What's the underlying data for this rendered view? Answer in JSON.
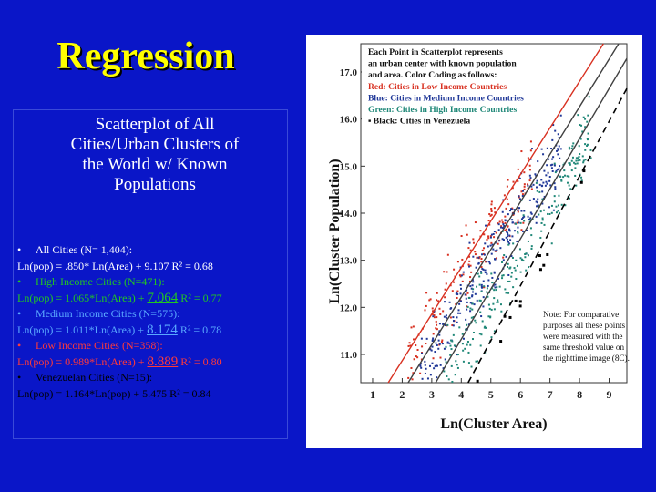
{
  "slide": {
    "title": "Regression",
    "subtitle_lines": [
      "Scatterplot of All",
      "Cities/Urban Clusters of",
      "the World w/ Known",
      "Populations"
    ],
    "stats": [
      {
        "bullet": "•",
        "label": "All Cities (N= 1,404):",
        "formula_prefix": "Ln(pop) = .850* Ln(Area) + 9.107",
        "big_value": "",
        "formula_suffix": " R² = 0.68",
        "color": "white"
      },
      {
        "bullet": "•",
        "label": "High Income Cities (N=471):",
        "formula_prefix": "Ln(pop) = 1.065*Ln(Area) + ",
        "big_value": "7.064",
        "formula_suffix": " R² = 0.77",
        "color": "green"
      },
      {
        "bullet": "•",
        "label": "Medium Income Cities (N=575):",
        "formula_prefix": "Ln(pop) = 1.011*Ln(Area) + ",
        "big_value": "8.174",
        "formula_suffix": " R² = 0.78",
        "color": "blue"
      },
      {
        "bullet": "•",
        "label": "Low Income Cities (N=358):",
        "formula_prefix": "Ln(pop) = 0.989*Ln(Area) + ",
        "big_value": "8.889",
        "formula_suffix": "  R² = 0.80",
        "color": "red"
      },
      {
        "bullet": "•",
        "label": "Venezuelan Cities (N=15):",
        "formula_prefix": "Ln(pop) = 1.164*Ln(pop) + 5.475   R² = 0.84",
        "big_value": "",
        "formula_suffix": "",
        "color": "vblk"
      }
    ]
  },
  "chart_data": {
    "type": "scatter",
    "xlabel": "Ln(Cluster Area)",
    "ylabel": "Ln(Cluster Population)",
    "xlim": [
      0.6,
      9.6
    ],
    "ylim": [
      10.4,
      17.6
    ],
    "x_ticks": [
      "1",
      "2",
      "3",
      "4",
      "5",
      "6",
      "7",
      "8",
      "9"
    ],
    "y_ticks": [
      "11.0",
      "12.0",
      "13.0",
      "14.0",
      "15.0",
      "16.0",
      "17.0"
    ],
    "legend": {
      "position": "top-right",
      "lines": [
        "Each Point in Scatterplot represents",
        "an urban center with known population",
        "and area. Color Coding as follows:",
        "Red: Cities in Low Income Countries",
        "Blue: Cities in Medium Income Countries",
        "Green: Cities in High Income Countries",
        "▪ Black: Cities in Venezuela"
      ]
    },
    "note": {
      "position": "bottom-right",
      "lines": [
        "Note: For comparative",
        "purposes all these points",
        "were measured with the",
        "same threshold value on",
        "the nighttime image (8C)."
      ]
    },
    "series": [
      {
        "name": "Low Income",
        "color": "#d83020",
        "slope": 0.989,
        "intercept": 8.889,
        "r2": 0.8,
        "n": 358,
        "x_range": [
          2.2,
          6.4
        ]
      },
      {
        "name": "Medium Income",
        "color": "#203898",
        "slope": 1.011,
        "intercept": 8.174,
        "r2": 0.78,
        "n": 575,
        "x_range": [
          2.6,
          7.4
        ]
      },
      {
        "name": "High Income",
        "color": "#208878",
        "slope": 1.065,
        "intercept": 7.064,
        "r2": 0.77,
        "n": 471,
        "x_range": [
          3.4,
          8.4
        ]
      },
      {
        "name": "Venezuela",
        "color": "#000000",
        "slope": 1.164,
        "intercept": 5.475,
        "r2": 0.84,
        "n": 15,
        "x_range": [
          4.0,
          8.2
        ]
      }
    ],
    "regression_lines": [
      {
        "name": "Low Income fit",
        "color": "#d83020",
        "dash": false,
        "slope": 0.989,
        "intercept": 8.889
      },
      {
        "name": "Medium Income fit",
        "color": "#404040",
        "dash": false,
        "slope": 1.011,
        "intercept": 8.174
      },
      {
        "name": "High Income fit",
        "color": "#404040",
        "dash": false,
        "slope": 1.065,
        "intercept": 7.064
      },
      {
        "name": "Venezuela fit",
        "color": "#000000",
        "dash": true,
        "slope": 1.164,
        "intercept": 5.475
      }
    ]
  }
}
